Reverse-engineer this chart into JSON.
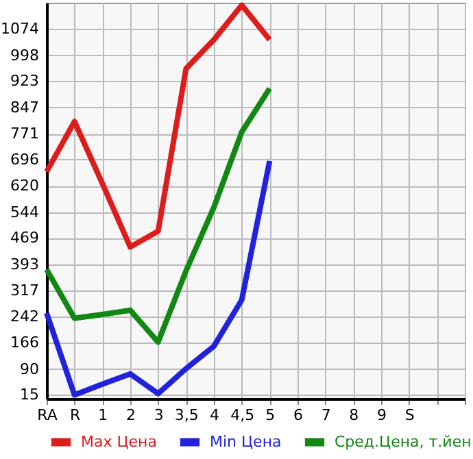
{
  "chart_data": {
    "type": "line",
    "categories": [
      "RA",
      "R",
      "1",
      "2",
      "3",
      "3,5",
      "4",
      "4,5",
      "5",
      "6",
      "7",
      "8",
      "9",
      "S",
      null,
      null
    ],
    "series": [
      {
        "name": "Max Цена",
        "color": "#dd1c1c",
        "values": [
          661,
          806,
          627,
          443,
          489,
          959,
          1043,
          1143,
          1043,
          null,
          null,
          null,
          null,
          null,
          null,
          null
        ]
      },
      {
        "name": "Min Цена",
        "color": "#2222dd",
        "values": [
          252,
          15,
          46,
          76,
          19,
          91,
          156,
          290,
          692,
          null,
          null,
          null,
          null,
          null,
          null,
          null
        ]
      },
      {
        "name": "Сред.Цена, т.йен",
        "color": "#118811",
        "values": [
          378,
          237,
          248,
          260,
          168,
          374,
          558,
          776,
          902,
          null,
          null,
          null,
          null,
          null,
          null,
          null
        ]
      }
    ],
    "ylim": [
      4,
      1150
    ],
    "yticks": [
      15,
      90,
      166,
      242,
      317,
      393,
      469,
      544,
      620,
      696,
      771,
      847,
      923,
      998,
      1074
    ],
    "grid": true,
    "legend": "bottom",
    "marker": "none",
    "line_style": "solid"
  }
}
